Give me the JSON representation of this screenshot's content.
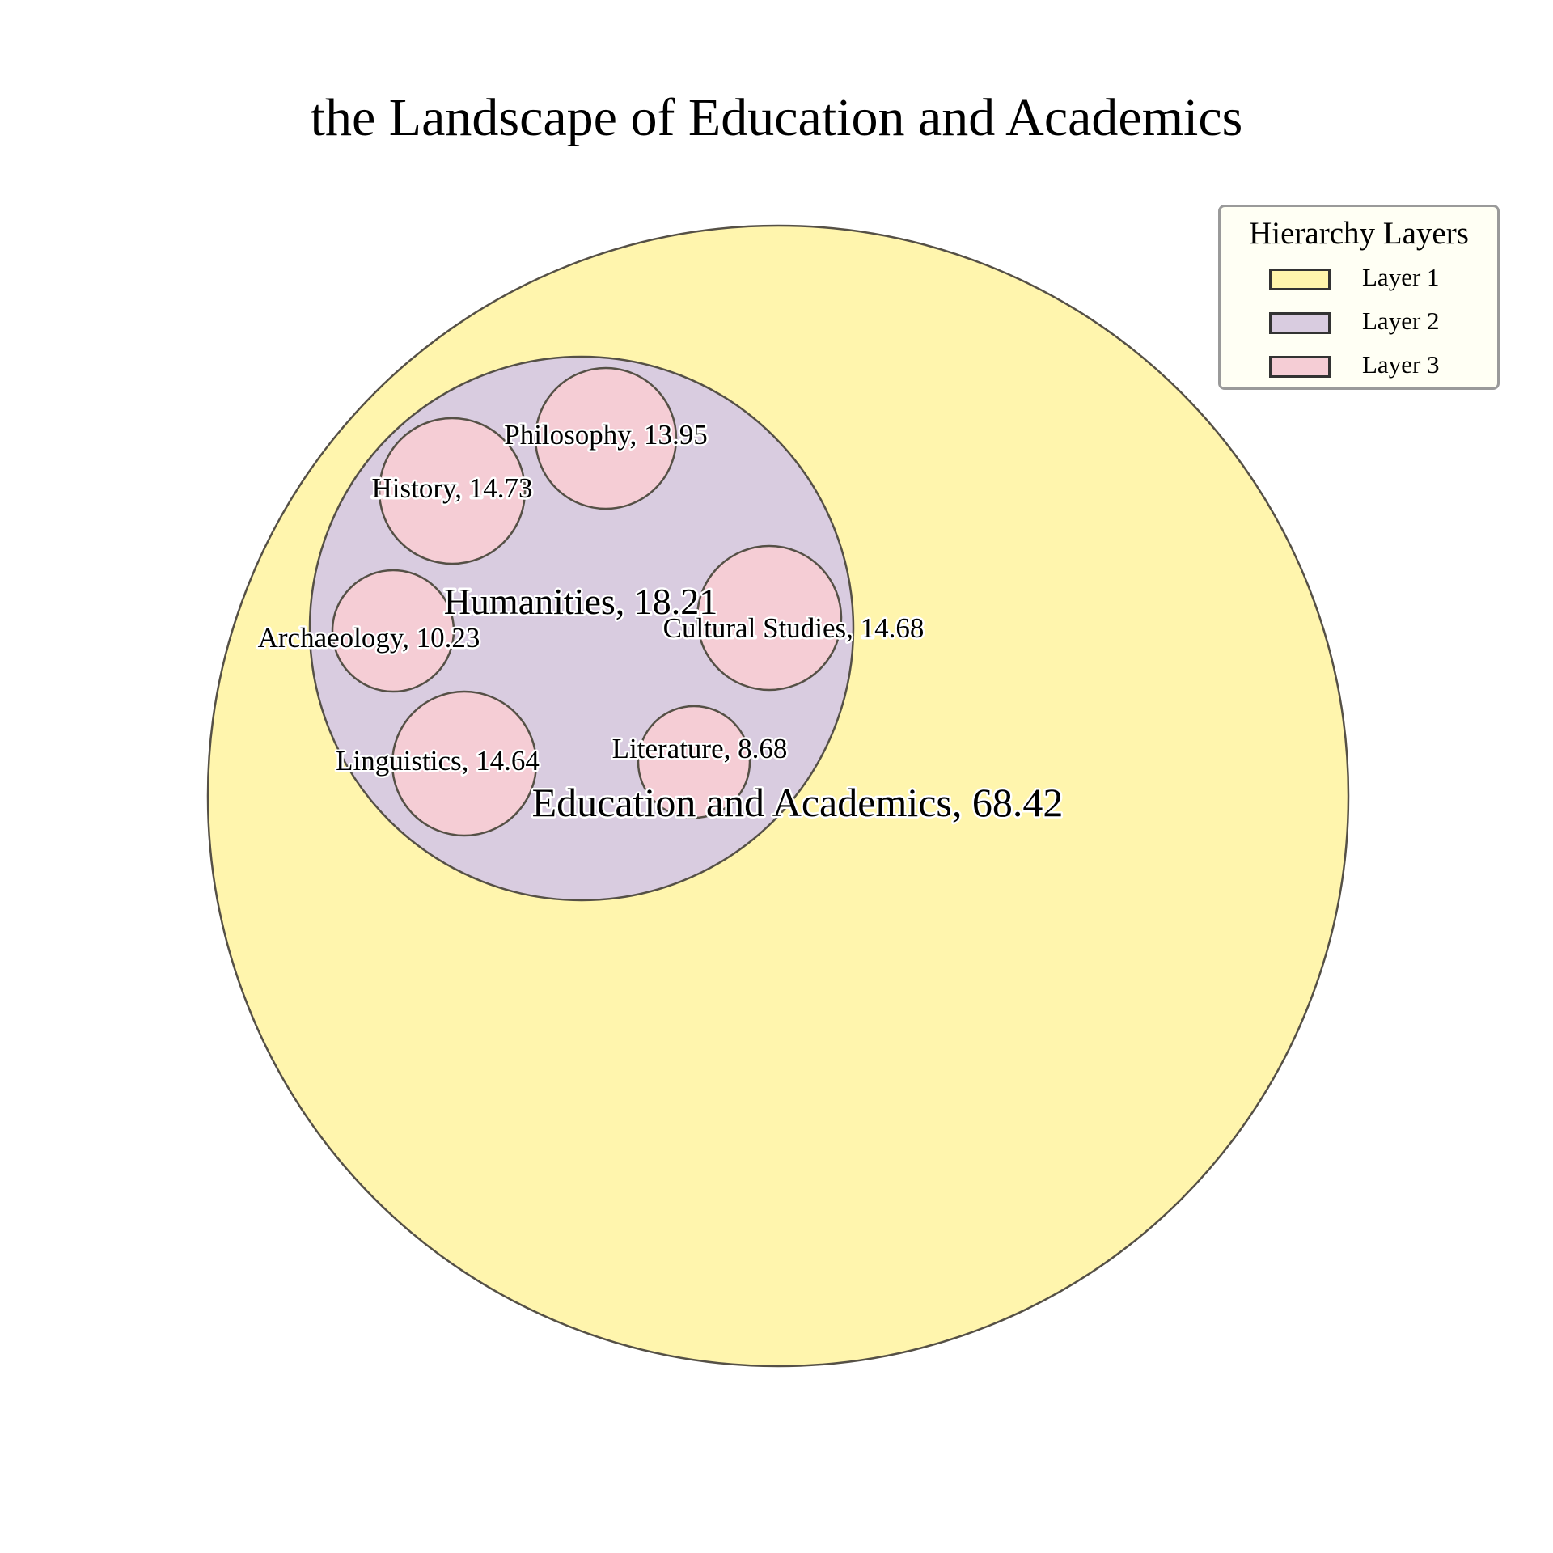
{
  "chart_data": {
    "type": "circle-packing",
    "title": "the Landscape of Education and Academics",
    "legend": {
      "title": "Hierarchy Layers",
      "placement": "top-right",
      "items": [
        {
          "label": "Layer 1",
          "color": "#fff5ad"
        },
        {
          "label": "Layer 2",
          "color": "#d9cce0"
        },
        {
          "label": "Layer 3",
          "color": "#f5cdd5"
        }
      ]
    },
    "root": {
      "name": "Education and Academics",
      "value": 68.42,
      "layer": 1,
      "label": "Education and Academics, 68.42",
      "children": [
        {
          "name": "Humanities",
          "value": 18.21,
          "layer": 2,
          "label": "Humanities, 18.21",
          "children": [
            {
              "name": "Philosophy",
              "value": 13.95,
              "layer": 3,
              "label": "Philosophy, 13.95"
            },
            {
              "name": "History",
              "value": 14.73,
              "layer": 3,
              "label": "History, 14.73"
            },
            {
              "name": "Archaeology",
              "value": 10.23,
              "layer": 3,
              "label": "Archaeology, 10.23"
            },
            {
              "name": "Cultural Studies",
              "value": 14.68,
              "layer": 3,
              "label": "Cultural Studies, 14.68"
            },
            {
              "name": "Linguistics",
              "value": 14.64,
              "layer": 3,
              "label": "Linguistics, 14.64"
            },
            {
              "name": "Literature",
              "value": 8.68,
              "layer": 3,
              "label": "Literature, 8.68"
            }
          ]
        }
      ]
    }
  }
}
